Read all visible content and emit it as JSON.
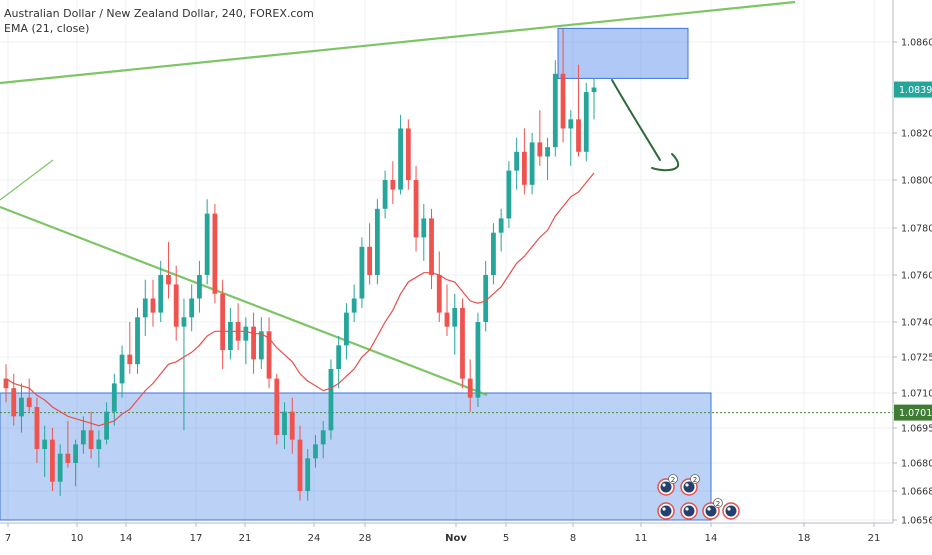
{
  "legend": {
    "symbol_line": "Australian Dollar / New Zealand Dollar, 240, FOREX.com",
    "indicator_line": "EMA (21, close)"
  },
  "price_scale": {
    "ticks": [
      "1.08600",
      "1.08200",
      "1.08000",
      "1.07800",
      "1.07600",
      "1.07400",
      "1.07250",
      "1.07100",
      "1.06950",
      "1.06800",
      "1.06680",
      "1.06560"
    ],
    "tick_values": [
      1.086,
      1.082,
      1.08,
      1.078,
      1.076,
      1.074,
      1.0725,
      1.071,
      1.0695,
      1.068,
      1.0668,
      1.0656
    ],
    "last_price_label": "1.08391",
    "last_price": 1.08391,
    "level_label": "1.07016",
    "level_price": 1.07016
  },
  "time_scale": {
    "labels": [
      "7",
      "10",
      "14",
      "17",
      "21",
      "24",
      "28",
      "Nov",
      "5",
      "8",
      "11",
      "14",
      "18",
      "21"
    ]
  },
  "chart_data": {
    "type": "candlestick",
    "title": "Australian Dollar / New Zealand Dollar, 240, FOREX.com",
    "series": [
      {
        "name": "EMA (21, close)",
        "type": "line",
        "color": "#e8504a"
      }
    ],
    "ylim": [
      1.0656,
      1.0876
    ],
    "colors": {
      "up": "#26a69a",
      "down": "#ef5350",
      "ema": "#e8504a",
      "trendline": "#66bb4a",
      "zone": "#4f86e8",
      "annotation": "#2e6b3a"
    },
    "candles_ohlc": [
      [
        1.0716,
        1.0722,
        1.0706,
        1.0712
      ],
      [
        1.0712,
        1.0718,
        1.0696,
        1.07
      ],
      [
        1.07,
        1.0714,
        1.0693,
        1.0708
      ],
      [
        1.0708,
        1.0716,
        1.0702,
        1.0704
      ],
      [
        1.0704,
        1.0708,
        1.068,
        1.0686
      ],
      [
        1.0686,
        1.0696,
        1.0674,
        1.069
      ],
      [
        1.069,
        1.0695,
        1.0668,
        1.0672
      ],
      [
        1.0672,
        1.0688,
        1.0666,
        1.0684
      ],
      [
        1.0684,
        1.0698,
        1.0678,
        1.068
      ],
      [
        1.068,
        1.069,
        1.067,
        1.0688
      ],
      [
        1.0688,
        1.07,
        1.0684,
        1.0694
      ],
      [
        1.0694,
        1.0702,
        1.0682,
        1.0686
      ],
      [
        1.0686,
        1.0694,
        1.0678,
        1.069
      ],
      [
        1.069,
        1.0706,
        1.0688,
        1.0702
      ],
      [
        1.0702,
        1.0718,
        1.0696,
        1.0714
      ],
      [
        1.0714,
        1.073,
        1.0708,
        1.0726
      ],
      [
        1.0726,
        1.074,
        1.0718,
        1.0722
      ],
      [
        1.0722,
        1.0746,
        1.0718,
        1.0742
      ],
      [
        1.0742,
        1.0758,
        1.0734,
        1.075
      ],
      [
        1.075,
        1.0758,
        1.0738,
        1.0744
      ],
      [
        1.0744,
        1.0766,
        1.074,
        1.076
      ],
      [
        1.076,
        1.0774,
        1.075,
        1.0756
      ],
      [
        1.0756,
        1.0764,
        1.0732,
        1.0738
      ],
      [
        1.0738,
        1.075,
        1.0694,
        1.0742
      ],
      [
        1.0742,
        1.0756,
        1.0736,
        1.075
      ],
      [
        1.075,
        1.0766,
        1.0744,
        1.076
      ],
      [
        1.076,
        1.0792,
        1.0756,
        1.0786
      ],
      [
        1.0786,
        1.079,
        1.0748,
        1.0752
      ],
      [
        1.0752,
        1.0758,
        1.072,
        1.0728
      ],
      [
        1.0728,
        1.0746,
        1.0724,
        1.074
      ],
      [
        1.074,
        1.0748,
        1.0728,
        1.0732
      ],
      [
        1.0732,
        1.0742,
        1.0722,
        1.0738
      ],
      [
        1.0738,
        1.0744,
        1.0718,
        1.0724
      ],
      [
        1.0724,
        1.0742,
        1.072,
        1.0736
      ],
      [
        1.0736,
        1.0742,
        1.0712,
        1.0716
      ],
      [
        1.0716,
        1.0718,
        1.0688,
        1.0692
      ],
      [
        1.0692,
        1.0706,
        1.0686,
        1.0702
      ],
      [
        1.0702,
        1.0708,
        1.0684,
        1.069
      ],
      [
        1.069,
        1.0696,
        1.0664,
        1.0668
      ],
      [
        1.0668,
        1.0686,
        1.0664,
        1.0682
      ],
      [
        1.0682,
        1.0692,
        1.0678,
        1.0688
      ],
      [
        1.0688,
        1.0698,
        1.0682,
        1.0694
      ],
      [
        1.0694,
        1.0724,
        1.069,
        1.072
      ],
      [
        1.072,
        1.0734,
        1.0712,
        1.073
      ],
      [
        1.073,
        1.0748,
        1.0724,
        1.0744
      ],
      [
        1.0744,
        1.0756,
        1.074,
        1.075
      ],
      [
        1.075,
        1.0776,
        1.0746,
        1.0772
      ],
      [
        1.0772,
        1.0782,
        1.0756,
        1.076
      ],
      [
        1.076,
        1.0792,
        1.0756,
        1.0788
      ],
      [
        1.0788,
        1.0804,
        1.0784,
        1.08
      ],
      [
        1.08,
        1.0808,
        1.079,
        1.0796
      ],
      [
        1.0796,
        1.0828,
        1.0794,
        1.0822
      ],
      [
        1.0822,
        1.0826,
        1.0796,
        1.08
      ],
      [
        1.08,
        1.0806,
        1.077,
        1.0776
      ],
      [
        1.0776,
        1.079,
        1.0766,
        1.0784
      ],
      [
        1.0784,
        1.0788,
        1.0754,
        1.076
      ],
      [
        1.076,
        1.077,
        1.074,
        1.0744
      ],
      [
        1.0744,
        1.0756,
        1.0734,
        1.0738
      ],
      [
        1.0738,
        1.0752,
        1.0726,
        1.0746
      ],
      [
        1.0746,
        1.075,
        1.0712,
        1.0716
      ],
      [
        1.0716,
        1.0724,
        1.0702,
        1.0708
      ],
      [
        1.0708,
        1.0744,
        1.0704,
        1.074
      ],
      [
        1.074,
        1.0766,
        1.0736,
        1.076
      ],
      [
        1.076,
        1.0782,
        1.0756,
        1.0778
      ],
      [
        1.0778,
        1.0788,
        1.077,
        1.0784
      ],
      [
        1.0784,
        1.0808,
        1.078,
        1.0804
      ],
      [
        1.0804,
        1.0818,
        1.0796,
        1.0812
      ],
      [
        1.0812,
        1.0822,
        1.0794,
        1.0798
      ],
      [
        1.0798,
        1.082,
        1.0794,
        1.0816
      ],
      [
        1.0816,
        1.083,
        1.0806,
        1.081
      ],
      [
        1.081,
        1.0818,
        1.08,
        1.0814
      ],
      [
        1.0814,
        1.0852,
        1.081,
        1.0846
      ],
      [
        1.0846,
        1.0866,
        1.0816,
        1.0822
      ],
      [
        1.0822,
        1.083,
        1.0806,
        1.0826
      ],
      [
        1.0826,
        1.085,
        1.081,
        1.0812
      ],
      [
        1.0812,
        1.0842,
        1.0808,
        1.0838
      ],
      [
        1.0838,
        1.0844,
        1.0826,
        1.084
      ]
    ],
    "ema_values": [
      1.0716,
      1.0714,
      1.0713,
      1.0712,
      1.0709,
      1.0707,
      1.0704,
      1.0702,
      1.07,
      1.0699,
      1.0698,
      1.0697,
      1.0696,
      1.0697,
      1.0698,
      1.0701,
      1.0703,
      1.0707,
      1.0711,
      1.0714,
      1.0718,
      1.0722,
      1.0723,
      1.0725,
      1.0727,
      1.073,
      1.0734,
      1.0736,
      1.0736,
      1.0736,
      1.0736,
      1.0736,
      1.0735,
      1.0735,
      1.0733,
      1.0729,
      1.0726,
      1.0723,
      1.0718,
      1.0715,
      1.0713,
      1.0711,
      1.0712,
      1.0714,
      1.0717,
      1.072,
      1.0725,
      1.0728,
      1.0734,
      1.074,
      1.0745,
      1.0752,
      1.0757,
      1.0759,
      1.0761,
      1.0761,
      1.076,
      1.0758,
      1.0757,
      1.0753,
      1.0749,
      1.0748,
      1.0749,
      1.0752,
      1.0755,
      1.076,
      1.0765,
      1.0768,
      1.0772,
      1.0776,
      1.0779,
      1.0785,
      1.0789,
      1.0793,
      1.0795,
      1.0799,
      1.0803
    ]
  }
}
